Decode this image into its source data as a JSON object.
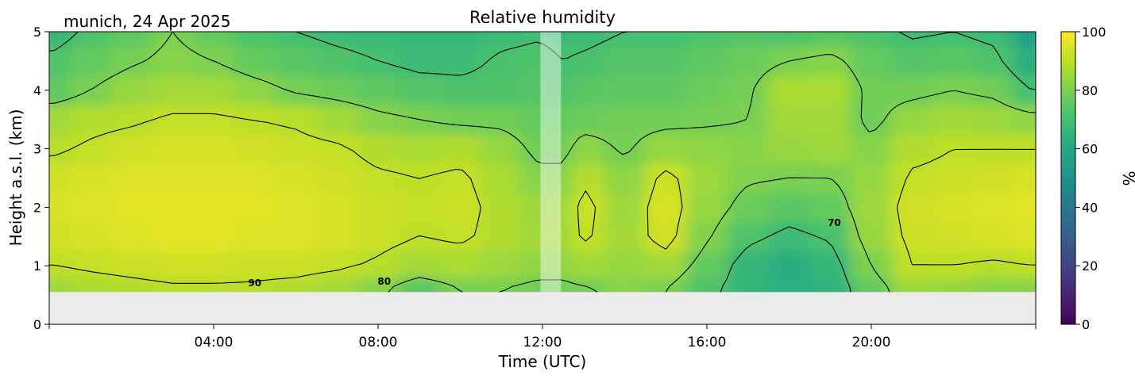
{
  "chart_data": {
    "type": "heatmap",
    "title": "Relative humidity",
    "subtitle": "munich, 24 Apr 2025",
    "xlabel": "Time (UTC)",
    "ylabel": "Height a.s.l. (km)",
    "x_unit": "hour UTC",
    "xlim": [
      0,
      24
    ],
    "ylim": [
      0,
      5
    ],
    "data_ylim": [
      0.55,
      5
    ],
    "xticks": [
      {
        "value": 4,
        "label": "04:00"
      },
      {
        "value": 8,
        "label": "08:00"
      },
      {
        "value": 12,
        "label": "12:00"
      },
      {
        "value": 16,
        "label": "16:00"
      },
      {
        "value": 20,
        "label": "20:00"
      }
    ],
    "yticks": [
      {
        "value": 0,
        "label": "0"
      },
      {
        "value": 1,
        "label": "1"
      },
      {
        "value": 2,
        "label": "2"
      },
      {
        "value": 3,
        "label": "3"
      },
      {
        "value": 4,
        "label": "4"
      },
      {
        "value": 5,
        "label": "5"
      }
    ],
    "colorbar": {
      "label": "%",
      "range": [
        0,
        100
      ],
      "colormap": "viridis",
      "ticks": [
        {
          "value": 0,
          "label": "0"
        },
        {
          "value": 20,
          "label": "20"
        },
        {
          "value": 40,
          "label": "40"
        },
        {
          "value": 60,
          "label": "60"
        },
        {
          "value": 80,
          "label": "80"
        },
        {
          "value": 100,
          "label": "100"
        }
      ]
    },
    "contour_levels": [
      70,
      80,
      90
    ],
    "contour_labels": [
      {
        "value": "90",
        "x": 5.0,
        "y": 0.65
      },
      {
        "value": "80",
        "x": 8.15,
        "y": 0.68
      },
      {
        "value": "70",
        "x": 19.1,
        "y": 1.68
      }
    ],
    "gap_hours": [
      11.95,
      12.45
    ],
    "grid": false,
    "time_hours": [
      0.1,
      1.0,
      2.0,
      3.0,
      4.0,
      5.0,
      6.0,
      7.0,
      8.0,
      9.0,
      10.0,
      11.0,
      11.9,
      12.5,
      13.0,
      14.0,
      15.0,
      16.0,
      17.0,
      18.0,
      19.0,
      20.0,
      21.0,
      22.0,
      23.0,
      23.9
    ],
    "height_km": [
      0.6,
      1.0,
      1.5,
      2.0,
      2.5,
      3.0,
      3.5,
      4.0,
      4.5,
      5.0
    ],
    "rh_percent": [
      [
        85,
        87,
        88,
        89,
        89,
        89,
        88,
        86,
        82,
        74,
        80,
        80,
        78,
        78,
        79,
        82,
        80,
        72,
        66,
        63,
        64,
        76,
        85,
        84,
        82,
        82
      ],
      [
        90,
        91,
        92,
        93,
        93,
        92,
        92,
        91,
        89,
        86,
        87,
        85,
        83,
        83,
        86,
        84,
        86,
        76,
        66,
        62,
        66,
        80,
        90,
        90,
        89,
        90
      ],
      [
        93,
        94,
        95,
        96,
        96,
        95,
        95,
        94,
        92,
        90,
        91,
        88,
        86,
        86,
        91,
        86,
        93,
        81,
        72,
        68,
        71,
        84,
        92,
        93,
        94,
        95
      ],
      [
        94,
        95,
        96,
        96,
        96,
        96,
        95,
        94,
        92,
        91,
        92,
        88,
        85,
        85,
        92,
        85,
        94,
        84,
        77,
        74,
        76,
        85,
        93,
        94,
        95,
        96
      ],
      [
        93,
        94,
        95,
        95,
        95,
        95,
        94,
        93,
        91,
        90,
        91,
        87,
        82,
        82,
        89,
        83,
        92,
        85,
        81,
        80,
        80,
        84,
        91,
        92,
        93,
        94
      ],
      [
        89,
        91,
        93,
        94,
        94,
        93,
        92,
        91,
        88,
        87,
        88,
        84,
        78,
        78,
        83,
        79,
        84,
        83,
        82,
        84,
        85,
        82,
        88,
        90,
        90,
        90
      ],
      [
        86,
        88,
        89,
        91,
        91,
        90,
        89,
        86,
        82,
        80,
        78,
        78,
        76,
        76,
        77,
        78,
        78,
        79,
        80,
        86,
        86,
        78,
        84,
        86,
        85,
        83
      ],
      [
        75,
        80,
        84,
        86,
        86,
        83,
        79,
        77,
        75,
        73,
        72,
        72,
        73,
        72,
        74,
        75,
        75,
        77,
        79,
        87,
        87,
        78,
        78,
        80,
        78,
        70
      ],
      [
        72,
        76,
        79,
        82,
        80,
        76,
        74,
        72,
        70,
        68,
        68,
        71,
        72,
        70,
        71,
        73,
        73,
        75,
        77,
        80,
        82,
        76,
        73,
        74,
        72,
        62
      ],
      [
        66,
        72,
        75,
        80,
        76,
        72,
        70,
        68,
        67,
        66,
        66,
        68,
        69,
        68,
        68,
        70,
        70,
        72,
        73,
        72,
        74,
        72,
        69,
        70,
        68,
        58
      ]
    ]
  }
}
